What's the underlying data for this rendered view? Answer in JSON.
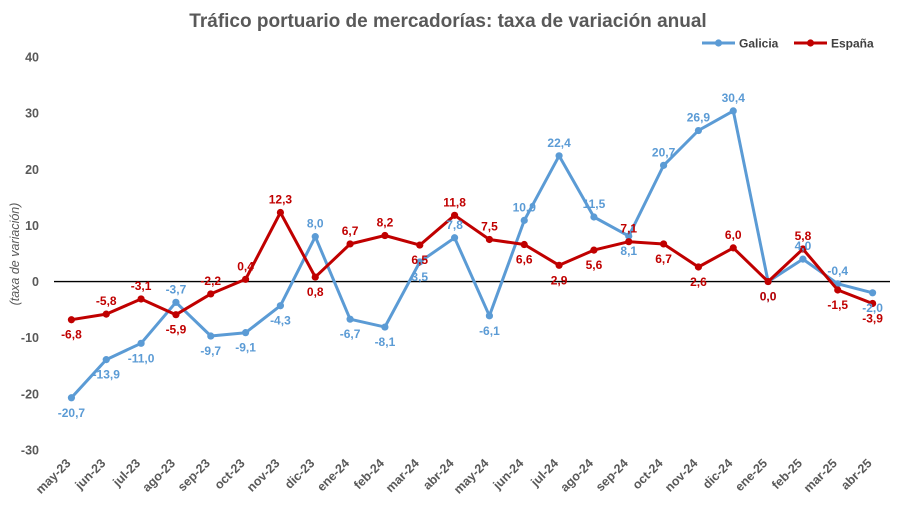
{
  "chart_data": {
    "type": "line",
    "title": "Tráfico portuario de mercadorías: taxa de variación anual",
    "ylabel": "(taxa de variación)",
    "xlabel": "",
    "ylim": [
      -30,
      40
    ],
    "yticks": [
      -30,
      -20,
      -10,
      0,
      10,
      20,
      30,
      40
    ],
    "grid": false,
    "legend_position": "top-right",
    "categories": [
      "may-23",
      "jun-23",
      "jul-23",
      "ago-23",
      "sep-23",
      "oct-23",
      "nov-23",
      "dic-23",
      "ene-24",
      "feb-24",
      "mar-24",
      "abr-24",
      "may-24",
      "jun-24",
      "jul-24",
      "ago-24",
      "sep-24",
      "oct-24",
      "nov-24",
      "dic-24",
      "ene-25",
      "feb-25",
      "mar-25",
      "abr-25"
    ],
    "series": [
      {
        "name": "Galicia",
        "color": "#5B9BD5",
        "values": [
          -20.7,
          -13.9,
          -11.0,
          -3.7,
          -9.7,
          -9.1,
          -4.3,
          8.0,
          -6.7,
          -8.1,
          3.5,
          7.8,
          -6.1,
          10.9,
          22.4,
          11.5,
          8.1,
          20.7,
          26.9,
          30.4,
          0.0,
          4.0,
          -0.4,
          -2.0
        ],
        "labels": [
          "-20,7",
          "-13,9",
          "-11,0",
          "-3,7",
          "-9,7",
          "-9,1",
          "-4,3",
          "8,0",
          "-6,7",
          "-8,1",
          "3,5",
          "7,8",
          "-6,1",
          "10,9",
          "22,4",
          "11,5",
          "8,1",
          "20,7",
          "26,9",
          "30,4",
          "0,0",
          "4,0",
          "-0,4",
          "-2,0"
        ]
      },
      {
        "name": "España",
        "color": "#C00000",
        "values": [
          -6.8,
          -5.8,
          -3.1,
          -5.9,
          -2.2,
          0.4,
          12.3,
          0.8,
          6.7,
          8.2,
          6.5,
          11.8,
          7.5,
          6.6,
          2.9,
          5.6,
          7.1,
          6.7,
          2.6,
          6.0,
          0.0,
          5.8,
          -1.5,
          -3.9
        ],
        "labels": [
          "-6,8",
          "-5,8",
          "-3,1",
          "-5,9",
          "-2,2",
          "0,4",
          "12,3",
          "0,8",
          "6,7",
          "8,2",
          "6,5",
          "11,8",
          "7,5",
          "6,6",
          "2,9",
          "5,6",
          "7,1",
          "6,7",
          "2,6",
          "6,0",
          "0,0",
          "5,8",
          "-1,5",
          "-3,9"
        ]
      }
    ]
  }
}
